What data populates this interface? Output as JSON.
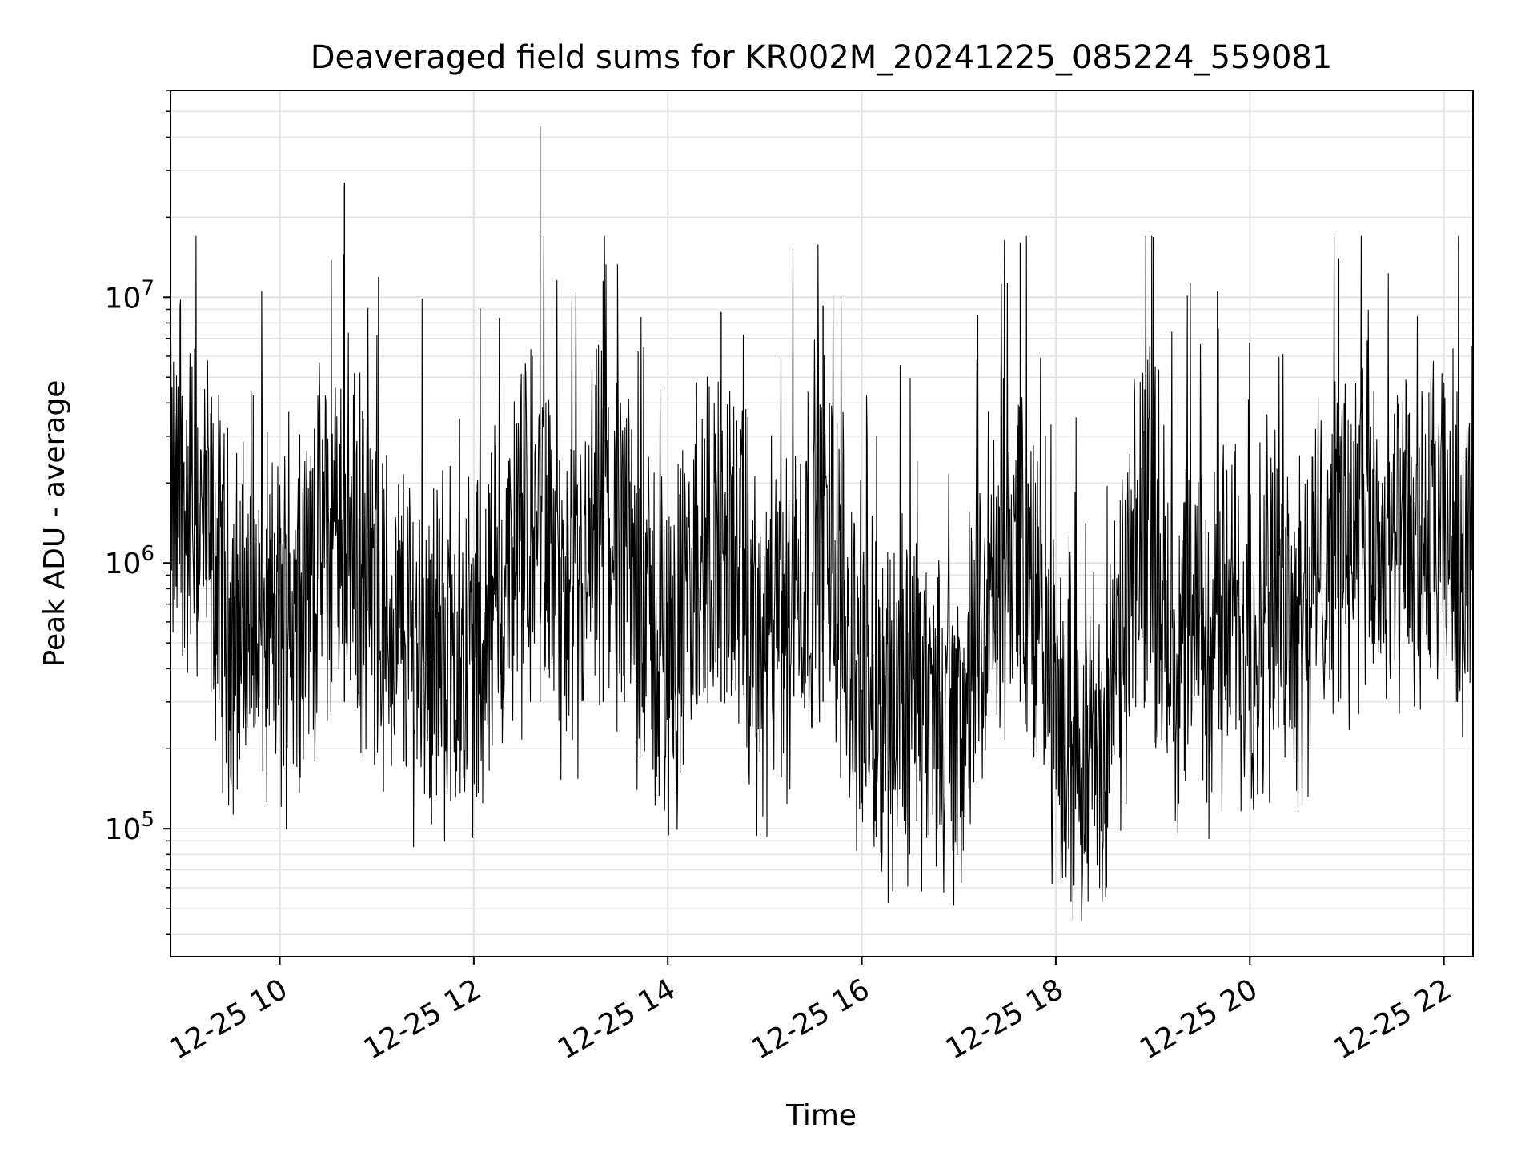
{
  "chart_data": {
    "type": "line",
    "title": "Deaveraged field sums for KR002M_20241225_085224_559081",
    "xlabel": "Time",
    "ylabel": "Peak ADU - average",
    "x_type": "time",
    "xlim": [
      "2024-12-25T08:52:24",
      "2024-12-25T22:18:00"
    ],
    "x_ticks": [
      {
        "value": "2024-12-25T10:00:00",
        "label": "12-25 10"
      },
      {
        "value": "2024-12-25T12:00:00",
        "label": "12-25 12"
      },
      {
        "value": "2024-12-25T14:00:00",
        "label": "12-25 14"
      },
      {
        "value": "2024-12-25T16:00:00",
        "label": "12-25 16"
      },
      {
        "value": "2024-12-25T18:00:00",
        "label": "12-25 18"
      },
      {
        "value": "2024-12-25T20:00:00",
        "label": "12-25 20"
      },
      {
        "value": "2024-12-25T22:00:00",
        "label": "12-25 22"
      }
    ],
    "y_scale": "log",
    "ylim": [
      33000,
      60000000
    ],
    "y_ticks": [
      {
        "value": 100000,
        "base": "10",
        "exp": "5"
      },
      {
        "value": 1000000,
        "base": "10",
        "exp": "6"
      },
      {
        "value": 10000000,
        "base": "10",
        "exp": "7"
      }
    ],
    "grid": true,
    "series_color": "#000000",
    "series": [
      {
        "points": [
          [
            "2024-12-25T08:52:24",
            1800000
          ],
          [
            "2024-12-25T09:10:00",
            1500000
          ],
          [
            "2024-12-25T09:30:00",
            600000
          ],
          [
            "2024-12-25T10:00:00",
            550000
          ],
          [
            "2024-12-25T10:40:00",
            27000000
          ],
          [
            "2024-12-25T11:00:00",
            600000
          ],
          [
            "2024-12-25T11:30:00",
            500000
          ],
          [
            "2024-12-25T12:00:00",
            450000
          ],
          [
            "2024-12-25T12:41:00",
            44000000
          ],
          [
            "2024-12-25T13:00:00",
            500000
          ],
          [
            "2024-12-25T13:20:00",
            11500000
          ],
          [
            "2024-12-25T14:00:00",
            420000
          ],
          [
            "2024-12-25T14:33:00",
            8800000
          ],
          [
            "2024-12-25T15:00:00",
            380000
          ],
          [
            "2024-12-25T15:36:00",
            9300000
          ],
          [
            "2024-12-25T16:00:00",
            330000
          ],
          [
            "2024-12-25T17:00:00",
            240000
          ],
          [
            "2024-12-25T17:38:00",
            16000000
          ],
          [
            "2024-12-25T18:00:00",
            220000
          ],
          [
            "2024-12-25T18:30:00",
            200000
          ],
          [
            "2024-12-25T18:55:00",
            4500000
          ],
          [
            "2024-12-25T19:10:00",
            500000
          ],
          [
            "2024-12-25T19:30:00",
            550000
          ],
          [
            "2024-12-25T20:00:00",
            600000
          ],
          [
            "2024-12-25T20:35:00",
            700000
          ],
          [
            "2024-12-25T20:55:00",
            14000000
          ],
          [
            "2024-12-25T21:30:00",
            1000000
          ],
          [
            "2024-12-25T22:15:00",
            1300000
          ]
        ]
      }
    ]
  }
}
